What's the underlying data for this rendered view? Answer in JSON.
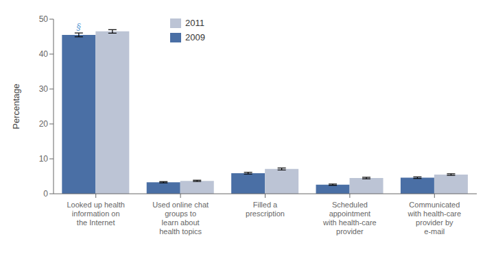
{
  "chart_data": {
    "type": "bar",
    "categories": [
      "Looked up health\ninformation on\nthe Internet",
      "Used online chat\ngroups to\nlearn about\nhealth topics",
      "Filled a\nprescription",
      "Scheduled\nappointment\nwith health-care\nprovider",
      "Communicated\nwith health-care\nprovider by\ne-mail"
    ],
    "series": [
      {
        "name": "2009",
        "color": "#4a6fa5",
        "values": [
          45.5,
          3.3,
          5.9,
          2.6,
          4.6
        ],
        "errors": [
          0.55,
          0.18,
          0.25,
          0.18,
          0.22
        ]
      },
      {
        "name": "2011",
        "color": "#bcc4d5",
        "values": [
          46.5,
          3.7,
          7.1,
          4.5,
          5.5
        ],
        "errors": [
          0.5,
          0.18,
          0.28,
          0.22,
          0.22
        ]
      }
    ],
    "ylabel": "Percentage",
    "ylim": [
      0,
      50
    ],
    "yticks": [
      0,
      10,
      20,
      30,
      40,
      50
    ],
    "grid": false,
    "legend": "upper left",
    "annotations": [
      {
        "text": "§",
        "series": "2009",
        "category": "Looked up health\ninformation on\nthe Internet",
        "color": "#5b9bd5"
      }
    ]
  }
}
